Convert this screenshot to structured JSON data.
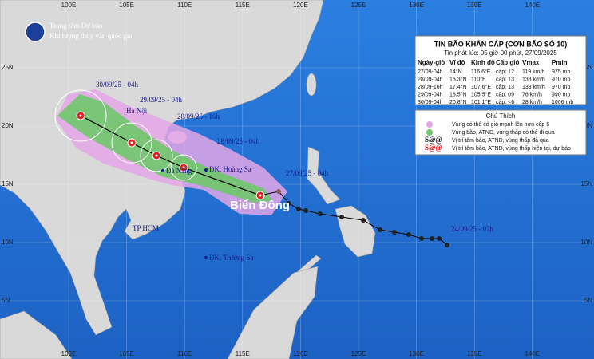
{
  "header": {
    "org": "Trung tâm Dự báo",
    "agency": "Khí tượng thủy văn quốc gia"
  },
  "bulletin": {
    "title": "TIN BÃO KHẨN CẤP (CƠN BÃO SỐ 10)",
    "issued": "Tin phát lúc: 05 giờ 00 phút, 27/09/2025",
    "columns": [
      "Ngày-giờ",
      "Vĩ độ",
      "Kinh độ",
      "Cấp gió",
      "Vmax",
      "Pmin"
    ],
    "rows": [
      [
        "27/09-04h",
        "14°N",
        "116.6°E",
        "cấp: 12",
        "119 km/h",
        "975 mb"
      ],
      [
        "28/09-04h",
        "16.3°N",
        "110°E",
        "cấp: 13",
        "133 km/h",
        "970 mb"
      ],
      [
        "28/09-16h",
        "17.4°N",
        "107.6°E",
        "cấp: 13",
        "133 km/h",
        "970 mb"
      ],
      [
        "29/09-04h",
        "18.5°N",
        "105.5°E",
        "cấp: 09",
        "76 km/h",
        "990 mb"
      ],
      [
        "30/09-04h",
        "20.8°N",
        "101.1°E",
        "cấp: <6",
        "28 km/h",
        "1006 mb"
      ]
    ]
  },
  "legend": {
    "title": "Chú Thích",
    "items": [
      "Vùng có thể có gió mạnh lên hơn cấp 6",
      "Vùng bão, ATNĐ, vùng thấp có thể đi qua",
      "Vị trí tâm bão, ATNĐ, vùng thấp đã qua",
      "Vị trí tâm bão, ATNĐ, vùng thấp hiện tại, dự báo"
    ]
  },
  "map": {
    "longitudes": [
      "100E",
      "105E",
      "110E",
      "115E",
      "120E",
      "125E",
      "130E",
      "135E",
      "140E"
    ],
    "latitudes": [
      "5N",
      "10N",
      "15N",
      "20N",
      "25N"
    ],
    "places": [
      "Hà Nội",
      "Đà Nẵng",
      "ĐK. Hoàng Sa",
      "TP HCM",
      "ĐK. Trường Sa",
      "Biển Đông"
    ],
    "track_labels": [
      "30/09/25 - 04h",
      "29/09/25 - 04h",
      "28/09/25 - 16h",
      "28/09/25 - 04h",
      "27/09/25 - 04h",
      "24/09/25 - 07h"
    ]
  }
}
